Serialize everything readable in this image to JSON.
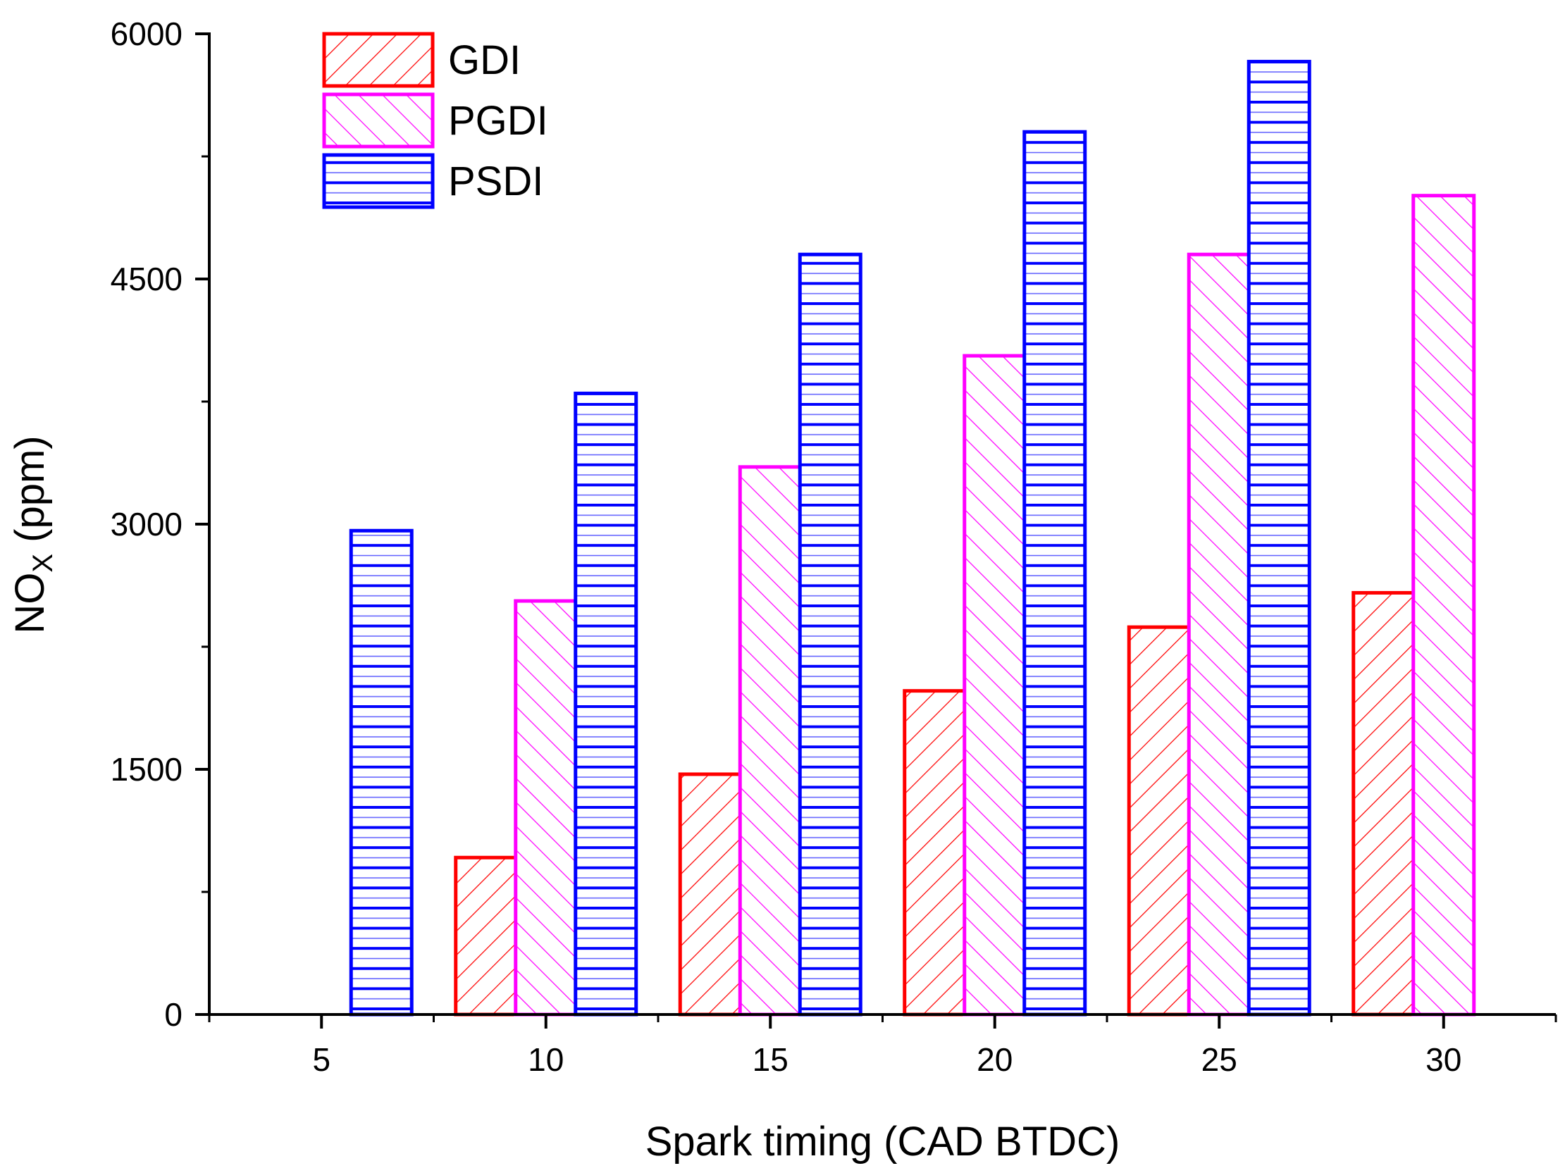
{
  "chart_data": {
    "type": "bar",
    "title": "",
    "xlabel": "Spark timing (CAD BTDC)",
    "ylabel": {
      "main": "NO",
      "subscript": "X",
      "suffix": " (ppm)"
    },
    "categories": [
      "5",
      "10",
      "15",
      "20",
      "25",
      "30"
    ],
    "x": [
      5,
      10,
      15,
      20,
      25,
      30
    ],
    "ylim": [
      0,
      6000
    ],
    "yticks": [
      0,
      1500,
      3000,
      4500,
      6000
    ],
    "ytick_labels": [
      "0",
      "1500",
      "3000",
      "4500",
      "6000"
    ],
    "grid": false,
    "legend_position": "top-left",
    "series": [
      {
        "name": "GDI",
        "color": "#ff0000",
        "pattern": "forward-diagonal-hatch",
        "values": [
          null,
          960,
          1470,
          1980,
          2370,
          2580
        ]
      },
      {
        "name": "PGDI",
        "color": "#ff00ff",
        "pattern": "backward-diagonal-hatch",
        "values": [
          null,
          2530,
          3350,
          4030,
          4650,
          5010
        ]
      },
      {
        "name": "PSDI",
        "color": "#0000ff",
        "pattern": "horizontal-hatch",
        "values": [
          2960,
          3800,
          4650,
          5400,
          5830,
          null
        ]
      }
    ]
  }
}
